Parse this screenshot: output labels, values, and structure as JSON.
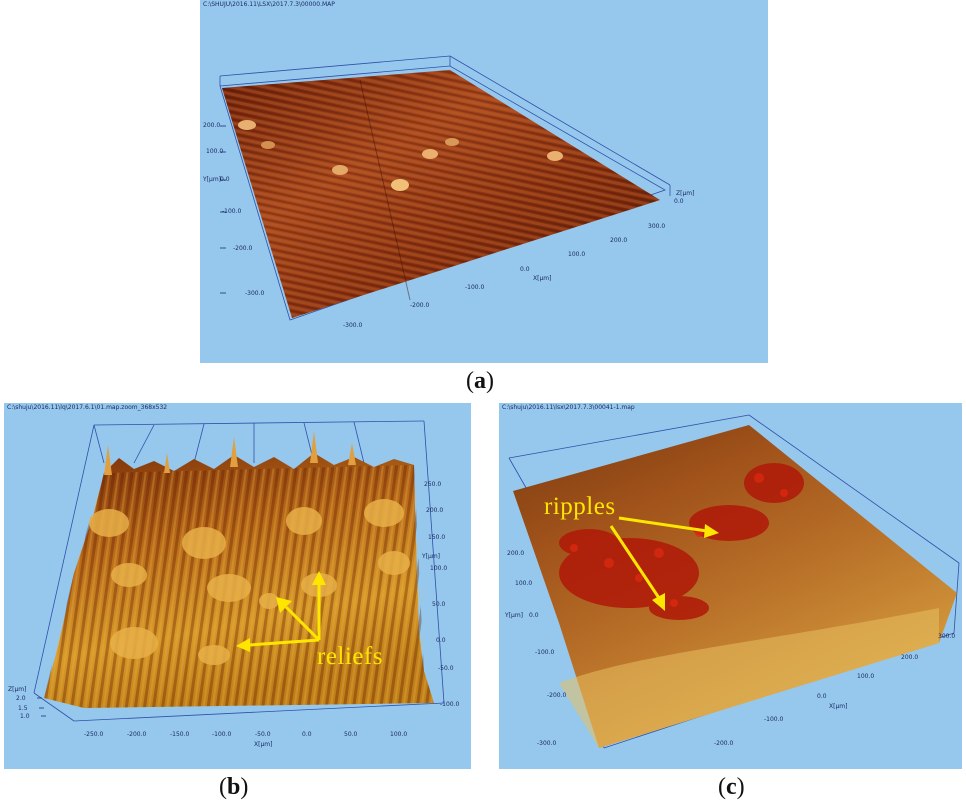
{
  "panels": {
    "a": {
      "path": "C:\\SHUJU\\2016.11\\LSX\\2017.7.3\\00000.MAP",
      "caption_open": "(",
      "caption_letter": "a",
      "caption_close": ")",
      "y_label": "Y[µm]",
      "x_label": "X[µm]",
      "z_label": "Z[µm]",
      "z_tick": "0.0",
      "y_ticks": [
        "200.0",
        "100.0",
        "0.0",
        "-100.0",
        "-200.0",
        "-300.0"
      ],
      "x_ticks": [
        "-300.0",
        "-200.0",
        "-100.0",
        "0.0",
        "100.0",
        "200.0",
        "300.0"
      ]
    },
    "b": {
      "path": "C:\\shuju\\2016.11\\lq\\2017.6.1\\01.map.zoom_368x532",
      "caption_open": "(",
      "caption_letter": "b",
      "caption_close": ")",
      "annotation": "reliefs",
      "z_label": "Z[µm]",
      "z_ticks": [
        "2.0",
        "1.5",
        "1.0"
      ],
      "x_label": "X[µm]",
      "x_ticks": [
        "-250.0",
        "-200.0",
        "-150.0",
        "-100.0",
        "-50.0",
        "0.0",
        "50.0",
        "100.0"
      ],
      "y_label": "Y[µm]",
      "y_ticks": [
        "250.0",
        "200.0",
        "150.0",
        "100.0",
        "50.0",
        "0.0",
        "-50.0",
        "-100.0"
      ]
    },
    "c": {
      "path": "C:\\shuju\\2016.11\\lsx\\2017.7.3\\00041-1.map",
      "caption_open": "(",
      "caption_letter": "c",
      "caption_close": ")",
      "annotation": "ripples",
      "y_label": "Y[µm]",
      "y_ticks": [
        "200.0",
        "100.0",
        "0.0",
        "-100.0",
        "-200.0",
        "-300.0"
      ],
      "x_label": "X[µm]",
      "x_ticks": [
        "-200.0",
        "-100.0",
        "0.0",
        "100.0",
        "200.0",
        "300.0"
      ]
    }
  },
  "colors": {
    "background": "#96c8ee",
    "axis": "#1c2a80",
    "annotation": "#ffe600"
  }
}
